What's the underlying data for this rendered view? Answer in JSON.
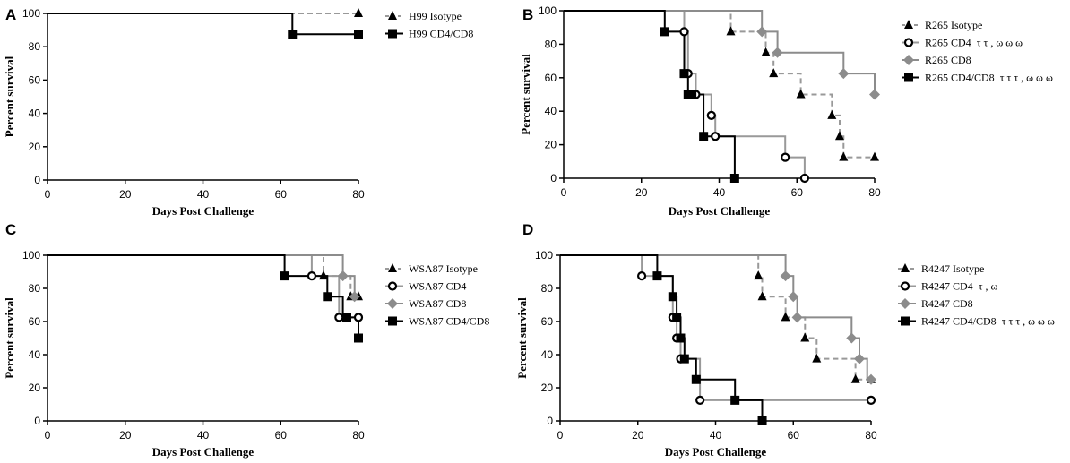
{
  "chart_data": [
    {
      "panel": "A",
      "type": "line",
      "title": "",
      "xlabel": "Days Post Challenge",
      "ylabel": "Percent survival",
      "xlim": [
        0,
        80
      ],
      "ylim": [
        0,
        100
      ],
      "xticks": [
        0,
        20,
        40,
        60,
        80
      ],
      "yticks": [
        0,
        20,
        40,
        60,
        80,
        100
      ],
      "legend_position": "right",
      "series": [
        {
          "name": "H99 Isotype",
          "color": "#999999",
          "dashed": true,
          "marker": "triangle",
          "points": [
            [
              0,
              100
            ],
            [
              80,
              100
            ]
          ],
          "markers": [
            [
              80,
              100
            ]
          ]
        },
        {
          "name": "H99 CD4/CD8",
          "color": "#000000",
          "dashed": false,
          "marker": "square",
          "points": [
            [
              0,
              100
            ],
            [
              63,
              100
            ],
            [
              63,
              87.5
            ],
            [
              80,
              87.5
            ]
          ],
          "markers": [
            [
              63,
              87.5
            ],
            [
              80,
              87.5
            ]
          ]
        }
      ]
    },
    {
      "panel": "B",
      "type": "line",
      "title": "",
      "xlabel": "Days Post Challenge",
      "ylabel": "Percent survival",
      "xlim": [
        0,
        80
      ],
      "ylim": [
        0,
        100
      ],
      "xticks": [
        0,
        20,
        40,
        60,
        80
      ],
      "yticks": [
        0,
        20,
        40,
        60,
        80,
        100
      ],
      "legend_position": "right",
      "series": [
        {
          "name": "R265 Isotype",
          "color": "#999999",
          "dashed": true,
          "marker": "triangle",
          "points": [
            [
              0,
              100
            ],
            [
              43,
              100
            ],
            [
              43,
              87.5
            ],
            [
              52,
              87.5
            ],
            [
              52,
              75
            ],
            [
              54,
              75
            ],
            [
              54,
              62.5
            ],
            [
              61,
              62.5
            ],
            [
              61,
              50
            ],
            [
              69,
              50
            ],
            [
              69,
              37.5
            ],
            [
              71,
              37.5
            ],
            [
              71,
              25
            ],
            [
              72,
              25
            ],
            [
              72,
              12.5
            ],
            [
              80,
              12.5
            ]
          ],
          "markers": [
            [
              43,
              87.5
            ],
            [
              52,
              75
            ],
            [
              54,
              62.5
            ],
            [
              61,
              50
            ],
            [
              69,
              37.5
            ],
            [
              71,
              25
            ],
            [
              72,
              12.5
            ],
            [
              80,
              12.5
            ]
          ]
        },
        {
          "name": "R265 CD4",
          "annotation": "τ τ , ω ω ω",
          "color": "#999999",
          "dashed": false,
          "marker": "circle",
          "points": [
            [
              0,
              100
            ],
            [
              31,
              100
            ],
            [
              31,
              87.5
            ],
            [
              32,
              87.5
            ],
            [
              32,
              62.5
            ],
            [
              34,
              62.5
            ],
            [
              34,
              50
            ],
            [
              38,
              50
            ],
            [
              38,
              37.5
            ],
            [
              39,
              37.5
            ],
            [
              39,
              25
            ],
            [
              57,
              25
            ],
            [
              57,
              12.5
            ],
            [
              62,
              12.5
            ],
            [
              62,
              0
            ]
          ],
          "markers": [
            [
              31,
              87.5
            ],
            [
              32,
              62.5
            ],
            [
              34,
              50
            ],
            [
              38,
              37.5
            ],
            [
              39,
              25
            ],
            [
              57,
              12.5
            ],
            [
              62,
              0
            ]
          ]
        },
        {
          "name": "R265 CD8",
          "color": "#8c8c8c",
          "dashed": false,
          "marker": "diamond",
          "points": [
            [
              0,
              100
            ],
            [
              51,
              100
            ],
            [
              51,
              87.5
            ],
            [
              55,
              87.5
            ],
            [
              55,
              75
            ],
            [
              72,
              75
            ],
            [
              72,
              62.5
            ],
            [
              80,
              62.5
            ],
            [
              80,
              50
            ]
          ],
          "markers": [
            [
              51,
              87.5
            ],
            [
              55,
              75
            ],
            [
              72,
              62.5
            ],
            [
              80,
              50
            ]
          ]
        },
        {
          "name": "R265 CD4/CD8",
          "annotation": "τ τ τ , ω ω ω",
          "color": "#000000",
          "dashed": false,
          "marker": "square",
          "points": [
            [
              0,
              100
            ],
            [
              26,
              100
            ],
            [
              26,
              87.5
            ],
            [
              31,
              87.5
            ],
            [
              31,
              62.5
            ],
            [
              32,
              62.5
            ],
            [
              32,
              50
            ],
            [
              36,
              50
            ],
            [
              36,
              25
            ],
            [
              44,
              25
            ],
            [
              44,
              0
            ]
          ],
          "markers": [
            [
              26,
              87.5
            ],
            [
              31,
              62.5
            ],
            [
              32,
              50
            ],
            [
              33,
              50
            ],
            [
              36,
              25
            ],
            [
              44,
              0
            ]
          ]
        }
      ]
    },
    {
      "panel": "C",
      "type": "line",
      "title": "",
      "xlabel": "Days Post Challenge",
      "ylabel": "Percent survival",
      "xlim": [
        0,
        80
      ],
      "ylim": [
        0,
        100
      ],
      "xticks": [
        0,
        20,
        40,
        60,
        80
      ],
      "yticks": [
        0,
        20,
        40,
        60,
        80,
        100
      ],
      "legend_position": "right",
      "series": [
        {
          "name": "WSA87 Isotype",
          "color": "#999999",
          "dashed": true,
          "marker": "triangle",
          "points": [
            [
              0,
              100
            ],
            [
              71,
              100
            ],
            [
              71,
              87.5
            ],
            [
              78,
              87.5
            ],
            [
              78,
              75
            ],
            [
              80,
              75
            ]
          ],
          "markers": [
            [
              71,
              87.5
            ],
            [
              78,
              75
            ],
            [
              80,
              75
            ]
          ]
        },
        {
          "name": "WSA87 CD4",
          "color": "#999999",
          "dashed": false,
          "marker": "circle",
          "points": [
            [
              0,
              100
            ],
            [
              68,
              100
            ],
            [
              68,
              87.5
            ],
            [
              75,
              87.5
            ],
            [
              75,
              62.5
            ],
            [
              80,
              62.5
            ]
          ],
          "markers": [
            [
              68,
              87.5
            ],
            [
              75,
              62.5
            ],
            [
              80,
              62.5
            ]
          ]
        },
        {
          "name": "WSA87 CD8",
          "color": "#8c8c8c",
          "dashed": false,
          "marker": "diamond",
          "points": [
            [
              0,
              100
            ],
            [
              76,
              100
            ],
            [
              76,
              87.5
            ],
            [
              79,
              87.5
            ],
            [
              79,
              75
            ],
            [
              80,
              75
            ]
          ],
          "markers": [
            [
              76,
              87.5
            ],
            [
              79,
              75
            ]
          ]
        },
        {
          "name": "WSA87 CD4/CD8",
          "color": "#000000",
          "dashed": false,
          "marker": "square",
          "points": [
            [
              0,
              100
            ],
            [
              61,
              100
            ],
            [
              61,
              87.5
            ],
            [
              72,
              87.5
            ],
            [
              72,
              75
            ],
            [
              76,
              75
            ],
            [
              76,
              62.5
            ],
            [
              80,
              62.5
            ],
            [
              80,
              50
            ]
          ],
          "markers": [
            [
              61,
              87.5
            ],
            [
              72,
              75
            ],
            [
              77,
              62.5
            ],
            [
              80,
              50
            ]
          ]
        }
      ]
    },
    {
      "panel": "D",
      "type": "line",
      "title": "",
      "xlabel": "Days Post Challenge",
      "ylabel": "Percent survival",
      "xlim": [
        0,
        80
      ],
      "ylim": [
        0,
        100
      ],
      "xticks": [
        0,
        20,
        40,
        60,
        80
      ],
      "yticks": [
        0,
        20,
        40,
        60,
        80,
        100
      ],
      "legend_position": "right",
      "series": [
        {
          "name": "R4247 Isotype",
          "color": "#999999",
          "dashed": true,
          "marker": "triangle",
          "points": [
            [
              0,
              100
            ],
            [
              51,
              100
            ],
            [
              51,
              87.5
            ],
            [
              52,
              87.5
            ],
            [
              52,
              75
            ],
            [
              58,
              75
            ],
            [
              58,
              62.5
            ],
            [
              63,
              62.5
            ],
            [
              63,
              50
            ],
            [
              66,
              50
            ],
            [
              66,
              37.5
            ],
            [
              76,
              37.5
            ],
            [
              76,
              25
            ],
            [
              80,
              25
            ]
          ],
          "markers": [
            [
              51,
              87.5
            ],
            [
              52,
              75
            ],
            [
              58,
              62.5
            ],
            [
              63,
              50
            ],
            [
              66,
              37.5
            ],
            [
              76,
              25
            ],
            [
              80,
              25
            ]
          ]
        },
        {
          "name": "R4247 CD4",
          "annotation": "τ , ω",
          "color": "#999999",
          "dashed": false,
          "marker": "circle",
          "points": [
            [
              0,
              100
            ],
            [
              21,
              100
            ],
            [
              21,
              87.5
            ],
            [
              29,
              87.5
            ],
            [
              29,
              62.5
            ],
            [
              30,
              62.5
            ],
            [
              30,
              50
            ],
            [
              31,
              50
            ],
            [
              31,
              37.5
            ],
            [
              36,
              37.5
            ],
            [
              36,
              12.5
            ],
            [
              80,
              12.5
            ]
          ],
          "markers": [
            [
              21,
              87.5
            ],
            [
              29,
              62.5
            ],
            [
              30,
              50
            ],
            [
              31,
              37.5
            ],
            [
              36,
              12.5
            ],
            [
              80,
              12.5
            ]
          ]
        },
        {
          "name": "R4247 CD8",
          "color": "#8c8c8c",
          "dashed": false,
          "marker": "diamond",
          "points": [
            [
              0,
              100
            ],
            [
              58,
              100
            ],
            [
              58,
              87.5
            ],
            [
              60,
              87.5
            ],
            [
              60,
              75
            ],
            [
              61,
              75
            ],
            [
              61,
              62.5
            ],
            [
              75,
              62.5
            ],
            [
              75,
              50
            ],
            [
              77,
              50
            ],
            [
              77,
              37.5
            ],
            [
              79,
              37.5
            ],
            [
              79,
              25
            ],
            [
              80,
              25
            ]
          ],
          "markers": [
            [
              58,
              87.5
            ],
            [
              60,
              75
            ],
            [
              61,
              62.5
            ],
            [
              75,
              50
            ],
            [
              77,
              37.5
            ],
            [
              80,
              25
            ]
          ]
        },
        {
          "name": "R4247 CD4/CD8",
          "annotation": "τ τ τ , ω ω ω",
          "color": "#000000",
          "dashed": false,
          "marker": "square",
          "points": [
            [
              0,
              100
            ],
            [
              25,
              100
            ],
            [
              25,
              87.5
            ],
            [
              29,
              87.5
            ],
            [
              29,
              75
            ],
            [
              30,
              75
            ],
            [
              30,
              62.5
            ],
            [
              31,
              62.5
            ],
            [
              31,
              50
            ],
            [
              32,
              50
            ],
            [
              32,
              37.5
            ],
            [
              35,
              37.5
            ],
            [
              35,
              25
            ],
            [
              45,
              25
            ],
            [
              45,
              12.5
            ],
            [
              52,
              12.5
            ],
            [
              52,
              0
            ]
          ],
          "markers": [
            [
              25,
              87.5
            ],
            [
              29,
              75
            ],
            [
              30,
              62.5
            ],
            [
              31,
              50
            ],
            [
              32,
              37.5
            ],
            [
              35,
              25
            ],
            [
              45,
              12.5
            ],
            [
              52,
              0
            ]
          ]
        }
      ]
    }
  ]
}
